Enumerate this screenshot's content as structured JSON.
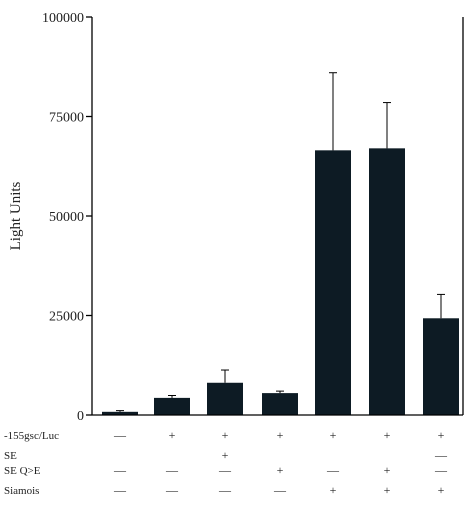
{
  "chart_data": {
    "type": "bar",
    "title": "",
    "xlabel": "",
    "ylabel": "Light Units",
    "ylim": [
      0,
      100000
    ],
    "yticks": [
      0,
      25000,
      50000,
      75000,
      100000
    ],
    "ytick_labels": [
      "0",
      "25000",
      "50000",
      "75000",
      "100000"
    ],
    "grid": false,
    "legend": "none",
    "bar_color": "#0d1b24",
    "values": [
      800,
      4300,
      8100,
      5500,
      66500,
      67000,
      24300
    ],
    "errors": [
      300,
      600,
      3200,
      500,
      19500,
      11500,
      6000
    ],
    "condition_rows": [
      {
        "label": "-155gsc/Luc",
        "marks": [
          "—",
          "+",
          "+",
          "+",
          "+",
          "+",
          "+"
        ]
      },
      {
        "label": "SE",
        "marks": [
          "",
          "",
          "+",
          "",
          "",
          "",
          "—"
        ]
      },
      {
        "label": "SE Q>E",
        "marks": [
          "—",
          "—",
          "—",
          "+",
          "—",
          "+",
          "—"
        ]
      },
      {
        "label": "Siamois",
        "marks": [
          "—",
          "—",
          "—",
          "—",
          "+",
          "+",
          "+"
        ]
      }
    ]
  }
}
